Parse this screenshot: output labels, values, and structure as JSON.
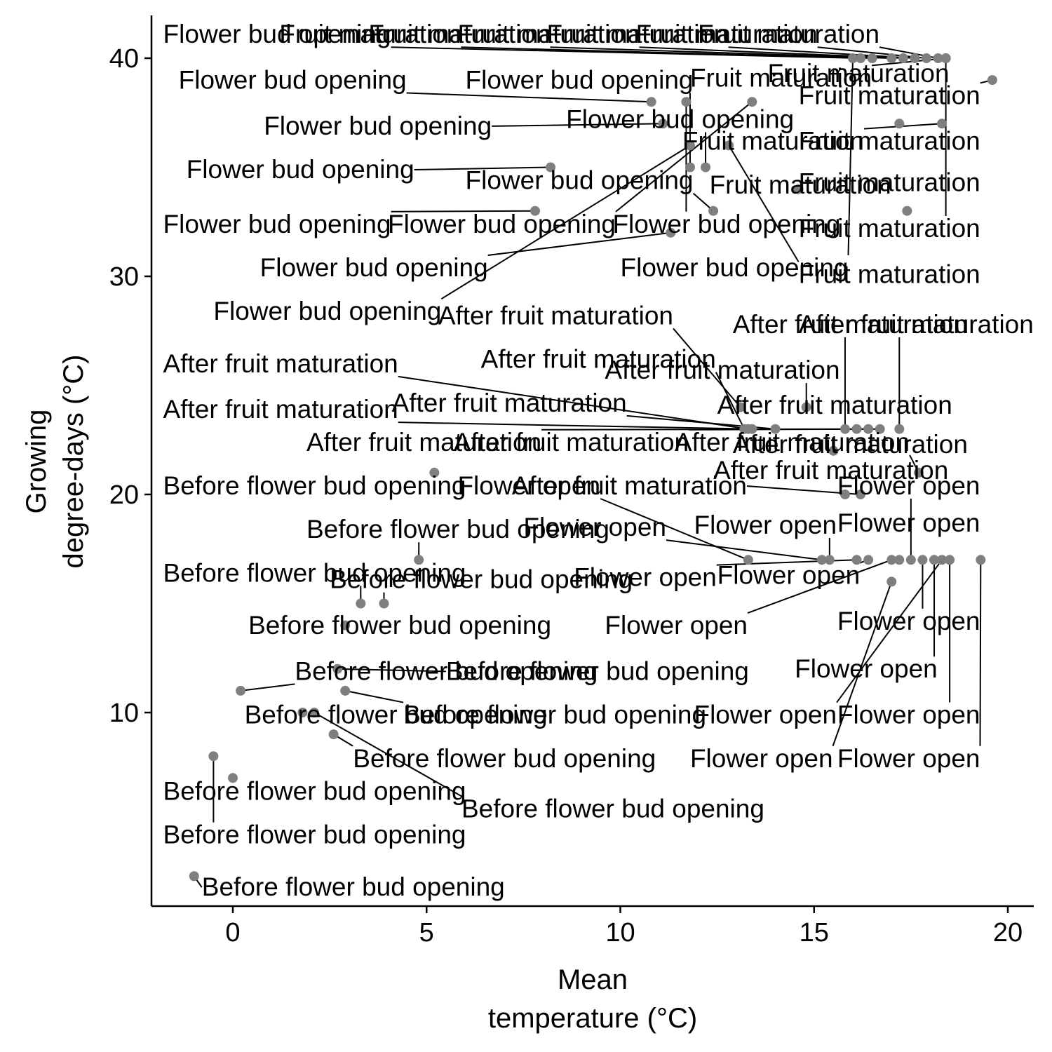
{
  "chart_data": {
    "type": "scatter",
    "title": "",
    "xlabel": [
      "Mean",
      "temperature (°C)"
    ],
    "ylabel": [
      "Growing",
      "degree-days (°C)"
    ],
    "xlim": [
      -2.1,
      20.6
    ],
    "ylim": [
      0.6,
      42
    ],
    "xticks": [
      0,
      5,
      10,
      15,
      20
    ],
    "yticks": [
      10,
      20,
      30,
      40
    ],
    "grid": false,
    "legend": "none",
    "colors": {
      "point": "#7f7f7f",
      "axis": "#000000",
      "text": "#000000"
    },
    "points": [
      {
        "x": -1.0,
        "y": 2.5,
        "label": "Before flower bud opening",
        "lx": -0.8,
        "ly": 1.6
      },
      {
        "x": -0.5,
        "y": 8.0,
        "label": "Before flower bud opening",
        "lx": -1.8,
        "ly": 4.0
      },
      {
        "x": 0.0,
        "y": 7.0,
        "label": "Before flower bud opening",
        "lx": -1.8,
        "ly": 6.0
      },
      {
        "x": 0.2,
        "y": 11.0,
        "label": "Before flower bud opening",
        "lx": 1.6,
        "ly": 11.5
      },
      {
        "x": 1.8,
        "y": 10.0,
        "label": "Before flower bud opening",
        "lx": 0.3,
        "ly": 9.5
      },
      {
        "x": 2.6,
        "y": 9.0,
        "label": "Before flower bud opening",
        "lx": 3.1,
        "ly": 7.5
      },
      {
        "x": 2.7,
        "y": 12.0,
        "label": "Before flower bud opening",
        "lx": 5.5,
        "ly": 11.5
      },
      {
        "x": 2.9,
        "y": 11.0,
        "label": "Before flower bud opening",
        "lx": 4.4,
        "ly": 9.5
      },
      {
        "x": 2.9,
        "y": 14.0,
        "label": "Before flower bud opening",
        "lx": 0.4,
        "ly": 13.6
      },
      {
        "x": 3.3,
        "y": 15.0,
        "label": "Before flower bud opening",
        "lx": -1.8,
        "ly": 16.0
      },
      {
        "x": 3.9,
        "y": 15.0,
        "label": "Before flower bud opening",
        "lx": 2.5,
        "ly": 15.7
      },
      {
        "x": 4.8,
        "y": 17.0,
        "label": "Before flower bud opening",
        "lx": 1.9,
        "ly": 18.0
      },
      {
        "x": 5.2,
        "y": 21.0,
        "label": "Before flower bud opening",
        "lx": -1.8,
        "ly": 20.0
      },
      {
        "x": 2.1,
        "y": 10.0,
        "label": "Before flower bud opening",
        "lx": 5.9,
        "ly": 5.2
      },
      {
        "x": 7.8,
        "y": 33.0,
        "label": "Flower bud opening",
        "lx": -1.8,
        "ly": 32.0
      },
      {
        "x": 8.2,
        "y": 35.0,
        "label": "Flower bud opening",
        "lx": -1.2,
        "ly": 34.5
      },
      {
        "x": 10.8,
        "y": 38.0,
        "label": "Flower bud opening",
        "lx": -1.4,
        "ly": 38.6
      },
      {
        "x": 11.1,
        "y": 37.0,
        "label": "Flower bud opening",
        "lx": 0.8,
        "ly": 36.5
      },
      {
        "x": 11.3,
        "y": 32.0,
        "label": "Flower bud opening",
        "lx": 0.7,
        "ly": 30.0
      },
      {
        "x": 11.8,
        "y": 36.0,
        "label": "Flower bud opening",
        "lx": -0.5,
        "ly": 28.0
      },
      {
        "x": 11.8,
        "y": 35.0,
        "label": "Flower bud opening",
        "lx": 6.0,
        "ly": 38.6
      },
      {
        "x": 12.2,
        "y": 35.0,
        "label": "Flower bud opening",
        "lx": 8.6,
        "ly": 36.8
      },
      {
        "x": 12.4,
        "y": 33.0,
        "label": "Flower bud opening",
        "lx": 6.0,
        "ly": 34.0
      },
      {
        "x": 13.4,
        "y": 38.0,
        "label": "Flower bud opening",
        "lx": 4.0,
        "ly": 32.0
      },
      {
        "x": 11.7,
        "y": 38.0,
        "label": "Flower bud opening",
        "lx": 9.8,
        "ly": 32.0
      },
      {
        "x": 16.0,
        "y": 40.0,
        "label": "Flower bud opening",
        "lx": 10.0,
        "ly": 30.0
      },
      {
        "x": 16.2,
        "y": 40.0,
        "label": "Flower bud opening",
        "lx": -1.8,
        "ly": 40.7
      },
      {
        "x": 16.5,
        "y": 40.0,
        "label": "Fruit maturation",
        "lx": 1.2,
        "ly": 40.7
      },
      {
        "x": 17.0,
        "y": 40.0,
        "label": "Fruit maturation",
        "lx": 3.5,
        "ly": 40.7
      },
      {
        "x": 17.3,
        "y": 40.0,
        "label": "Fruit maturation",
        "lx": 5.8,
        "ly": 40.7
      },
      {
        "x": 17.6,
        "y": 40.0,
        "label": "Fruit maturation",
        "lx": 8.1,
        "ly": 40.7
      },
      {
        "x": 17.9,
        "y": 40.0,
        "label": "Fruit maturation",
        "lx": 10.4,
        "ly": 40.7
      },
      {
        "x": 18.2,
        "y": 40.0,
        "label": "Fruit maturation",
        "lx": 12.0,
        "ly": 40.7
      },
      {
        "x": 18.4,
        "y": 40.0,
        "label": "Fruit maturation",
        "lx": 11.8,
        "ly": 38.7
      },
      {
        "x": 18.4,
        "y": 40.0,
        "label": "Fruit maturation",
        "lx": 13.8,
        "ly": 38.9
      },
      {
        "x": 19.6,
        "y": 39.0,
        "label": "Fruit maturation",
        "lx": 14.6,
        "ly": 37.9
      },
      {
        "x": 18.3,
        "y": 37.0,
        "label": "Fruit maturation",
        "lx": 11.6,
        "ly": 35.8
      },
      {
        "x": 17.2,
        "y": 37.0,
        "label": "Fruit maturation",
        "lx": 14.6,
        "ly": 35.8
      },
      {
        "x": 17.4,
        "y": 33.0,
        "label": "Fruit maturation",
        "lx": 14.6,
        "ly": 33.9
      },
      {
        "x": 18.4,
        "y": 40.0,
        "label": "Fruit maturation",
        "lx": 14.6,
        "ly": 31.8
      },
      {
        "x": 12.8,
        "y": 36.0,
        "label": "Fruit maturation",
        "lx": 14.6,
        "ly": 29.7
      },
      {
        "x": 14.6,
        "y": 34.0,
        "label": "Fruit maturation",
        "lx": 12.3,
        "ly": 33.8
      },
      {
        "x": 13.1,
        "y": 24.0,
        "label": "After fruit maturation",
        "lx": 5.3,
        "ly": 27.8
      },
      {
        "x": 13.2,
        "y": 23.0,
        "label": "After fruit maturation",
        "lx": 6.4,
        "ly": 25.8
      },
      {
        "x": 13.3,
        "y": 23.0,
        "label": "After fruit maturation",
        "lx": -1.8,
        "ly": 25.6
      },
      {
        "x": 13.4,
        "y": 23.0,
        "label": "After fruit maturation",
        "lx": -1.8,
        "ly": 23.5
      },
      {
        "x": 14.0,
        "y": 23.0,
        "label": "After fruit maturation",
        "lx": 4.1,
        "ly": 23.8
      },
      {
        "x": 14.8,
        "y": 24.0,
        "label": "After fruit maturation",
        "lx": 9.6,
        "ly": 25.3
      },
      {
        "x": 15.8,
        "y": 23.0,
        "label": "After fruit maturation",
        "lx": 12.9,
        "ly": 27.4
      },
      {
        "x": 16.1,
        "y": 23.0,
        "label": "After fruit maturation",
        "lx": 12.5,
        "ly": 23.7
      },
      {
        "x": 16.4,
        "y": 23.0,
        "label": "After fruit maturation",
        "lx": 1.9,
        "ly": 22.0
      },
      {
        "x": 16.7,
        "y": 23.0,
        "label": "After fruit maturation",
        "lx": 5.7,
        "ly": 22.0
      },
      {
        "x": 17.2,
        "y": 23.0,
        "label": "After fruit maturation",
        "lx": 14.6,
        "ly": 27.4
      },
      {
        "x": 17.7,
        "y": 21.0,
        "label": "After fruit maturation",
        "lx": 11.4,
        "ly": 22.0
      },
      {
        "x": 15.5,
        "y": 22.0,
        "label": "After fruit maturation",
        "lx": 12.9,
        "ly": 21.9
      },
      {
        "x": 16.2,
        "y": 20.0,
        "label": "After fruit maturation",
        "lx": 7.2,
        "ly": 20.0
      },
      {
        "x": 15.8,
        "y": 20.0,
        "label": "After fruit maturation",
        "lx": 12.4,
        "ly": 20.7
      },
      {
        "x": 13.3,
        "y": 17.0,
        "label": "Flower open",
        "lx": 5.8,
        "ly": 20.0
      },
      {
        "x": 15.2,
        "y": 17.0,
        "label": "Flower open",
        "lx": 7.5,
        "ly": 18.1
      },
      {
        "x": 15.4,
        "y": 17.0,
        "label": "Flower open",
        "lx": 11.9,
        "ly": 18.2
      },
      {
        "x": 16.1,
        "y": 17.0,
        "label": "Flower open",
        "lx": 8.8,
        "ly": 15.8
      },
      {
        "x": 16.4,
        "y": 17.0,
        "label": "Flower open",
        "lx": 12.5,
        "ly": 15.9
      },
      {
        "x": 17.0,
        "y": 17.0,
        "label": "Flower open",
        "lx": 9.6,
        "ly": 13.6
      },
      {
        "x": 17.2,
        "y": 17.0,
        "label": "Flower open",
        "lx": 15.6,
        "ly": 18.3
      },
      {
        "x": 17.5,
        "y": 17.0,
        "label": "Flower open",
        "lx": 15.6,
        "ly": 20.0
      },
      {
        "x": 17.8,
        "y": 17.0,
        "label": "Flower open",
        "lx": 15.6,
        "ly": 13.8
      },
      {
        "x": 18.1,
        "y": 17.0,
        "label": "Flower open",
        "lx": 14.5,
        "ly": 11.6
      },
      {
        "x": 18.3,
        "y": 17.0,
        "label": "Flower open",
        "lx": 11.9,
        "ly": 9.5
      },
      {
        "x": 18.5,
        "y": 17.0,
        "label": "Flower open",
        "lx": 15.6,
        "ly": 9.5
      },
      {
        "x": 19.3,
        "y": 17.0,
        "label": "Flower open",
        "lx": 15.6,
        "ly": 7.5
      },
      {
        "x": 17.0,
        "y": 16.0,
        "label": "Flower open",
        "lx": 11.8,
        "ly": 7.5
      }
    ]
  }
}
